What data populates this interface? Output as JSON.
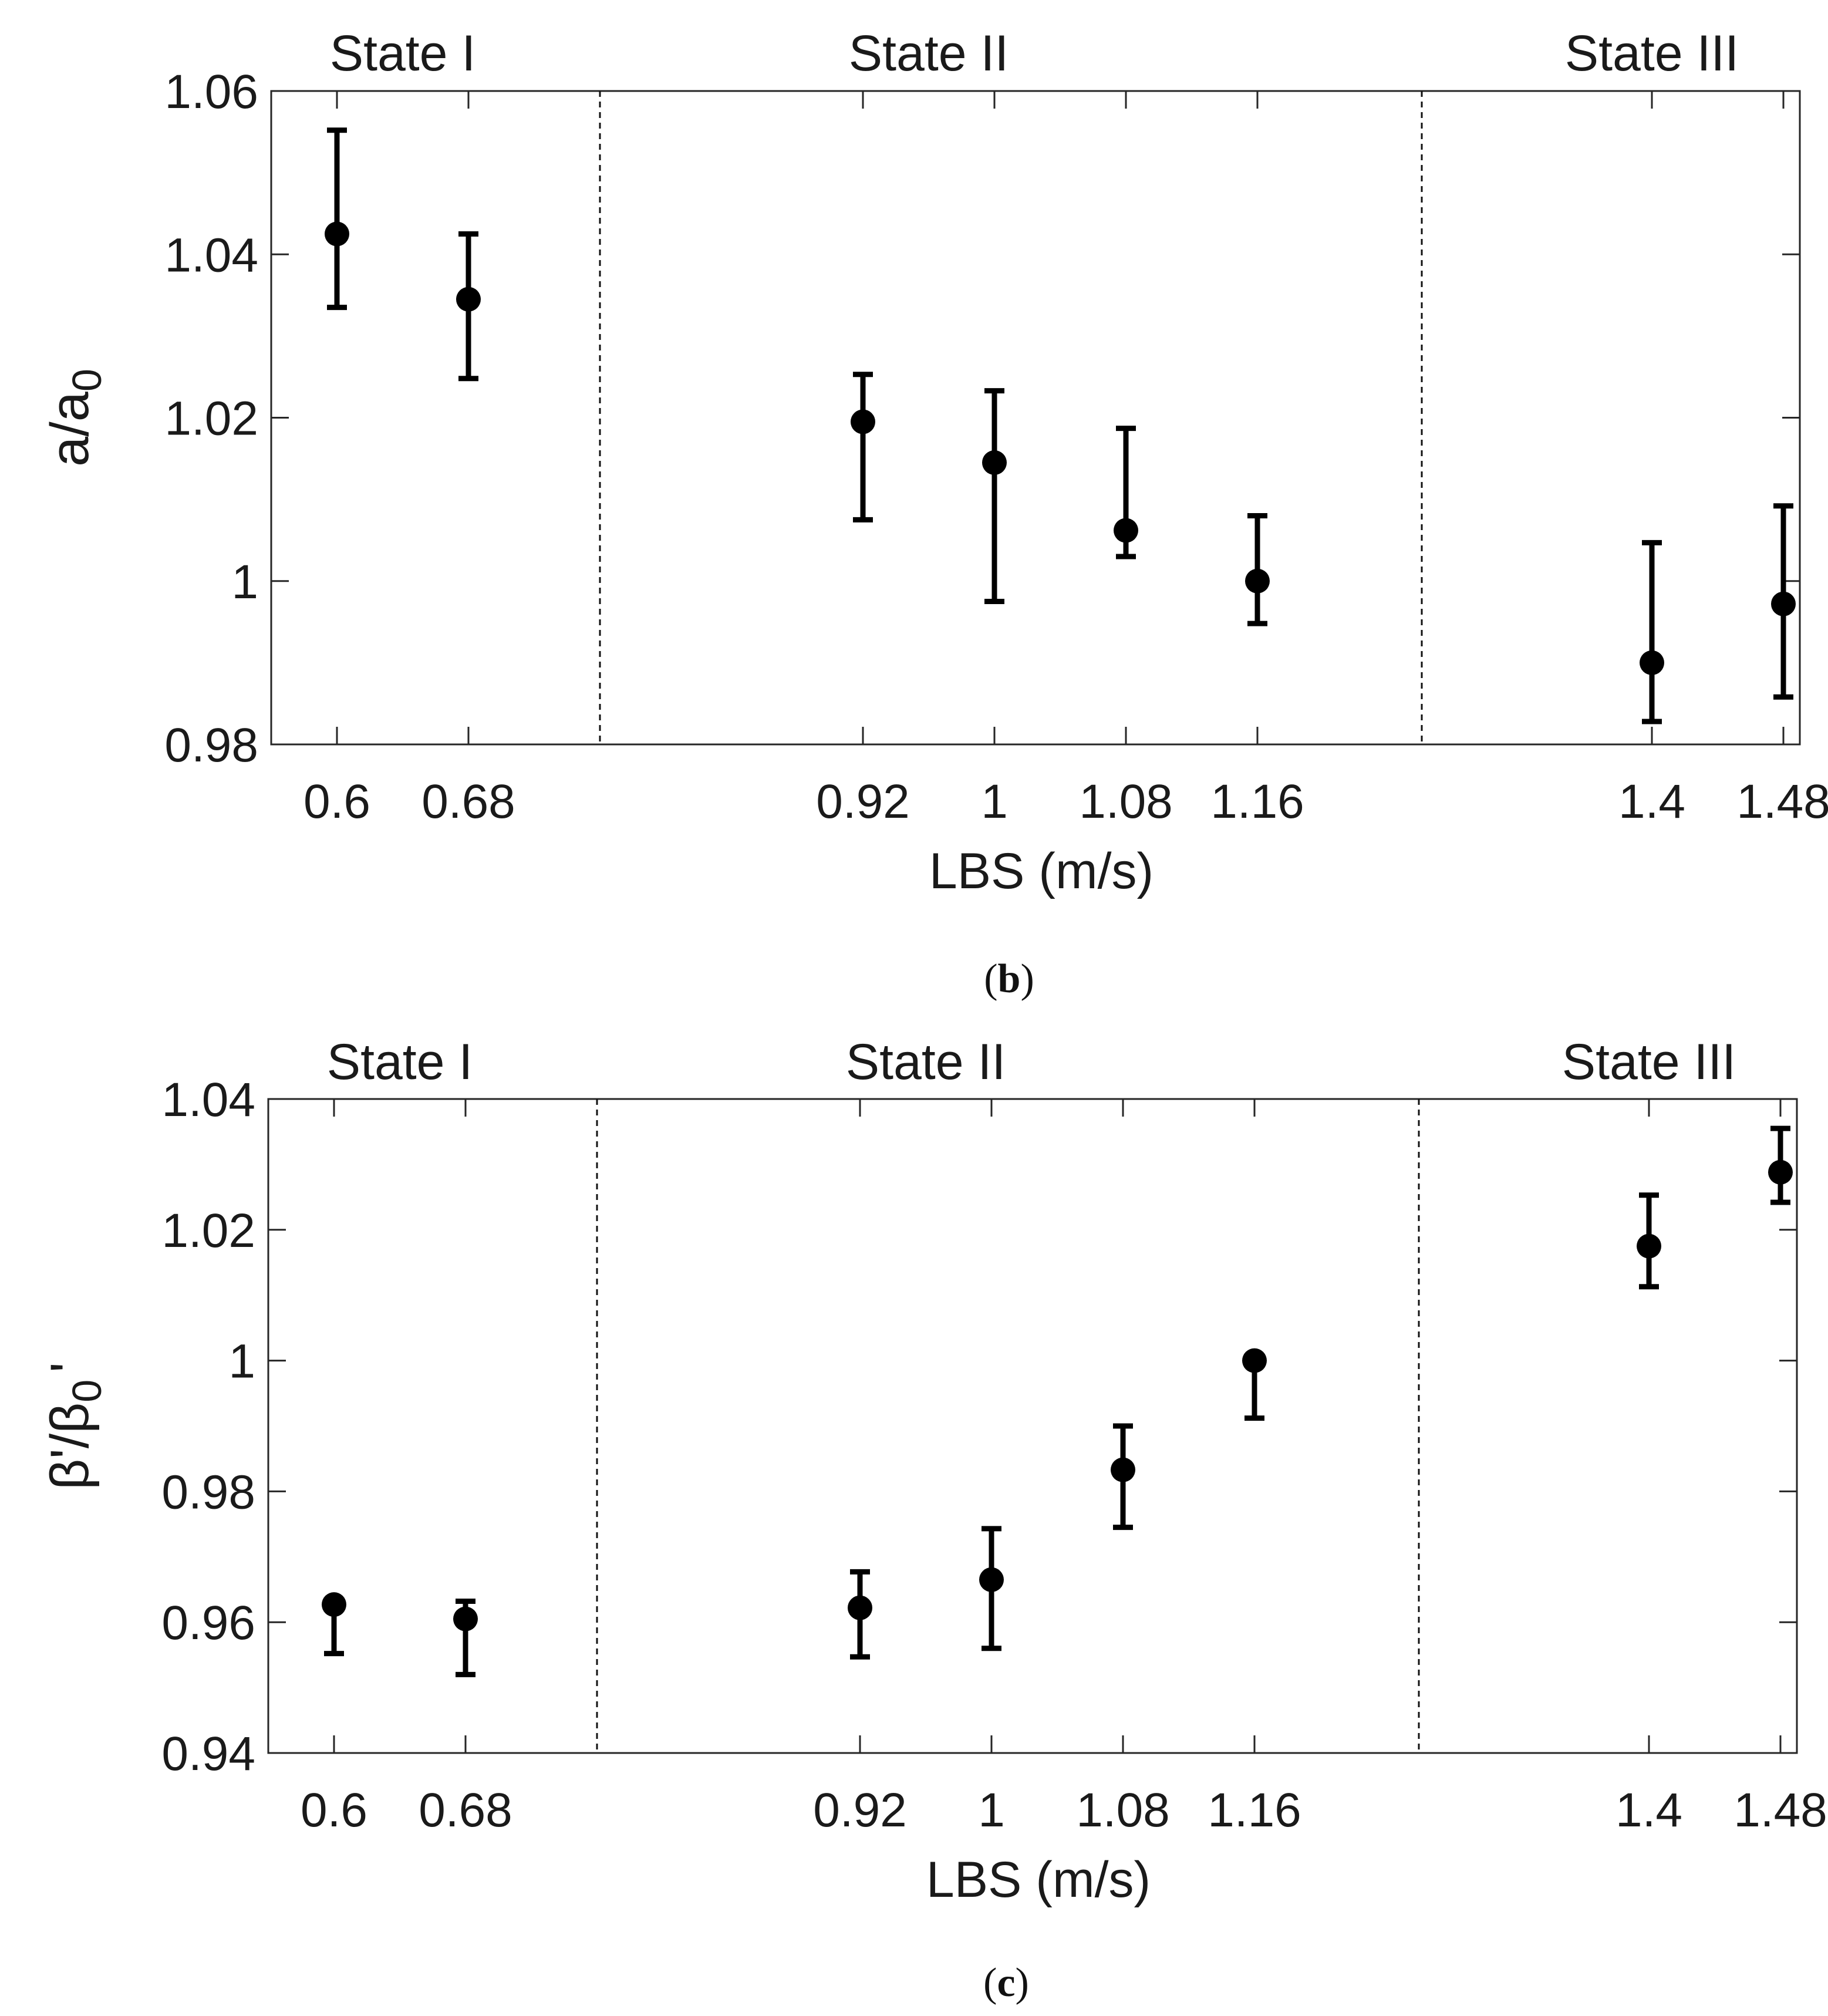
{
  "chart_data": [
    {
      "type": "scatter",
      "title": "",
      "xlabel": "LBS (m/s)",
      "ylabel": "a/a0",
      "ylabel_main": "a/a",
      "ylabel_sub": "0",
      "ylabel_suffix": "",
      "ylim": [
        0.98,
        1.06
      ],
      "yticks": [
        0.98,
        1,
        1.02,
        1.04,
        1.06
      ],
      "ytick_labels": [
        "0.98",
        "1",
        "1.02",
        "1.04",
        "1.06"
      ],
      "xlim": [
        0.56,
        1.49
      ],
      "xticks": [
        0.6,
        0.68,
        0.92,
        1,
        1.08,
        1.16,
        1.4,
        1.48
      ],
      "xtick_labels": [
        "0.6",
        "0.68",
        "0.92",
        "1",
        "1.08",
        "1.16",
        "1.4",
        "1.48"
      ],
      "state_dividers": [
        0.76,
        1.26
      ],
      "state_labels": [
        {
          "label": "State I",
          "x": 0.64
        },
        {
          "label": "State II",
          "x": 0.96
        },
        {
          "label": "State III",
          "x": 1.4
        }
      ],
      "series": [
        {
          "name": "a/a0",
          "color": "#000000",
          "x": [
            0.6,
            0.68,
            0.92,
            1,
            1.08,
            1.16,
            1.4,
            1.48
          ],
          "y": [
            1.0425,
            1.0345,
            1.0195,
            1.0145,
            1.0062,
            1.0,
            0.99,
            0.9972
          ],
          "err_low": [
            1.0335,
            1.0248,
            1.0075,
            0.9975,
            1.003,
            0.9948,
            0.9828,
            0.9858
          ],
          "err_high": [
            1.0552,
            1.0425,
            1.0253,
            1.0233,
            1.0187,
            1.008,
            1.0047,
            1.0092
          ]
        }
      ],
      "caption": "(b)",
      "caption_letter": "b"
    },
    {
      "type": "scatter",
      "title": "",
      "xlabel": "LBS (m/s)",
      "ylabel": "β'/β0'",
      "ylabel_main": "β'/β",
      "ylabel_sub": "0",
      "ylabel_suffix": "'",
      "ylim": [
        0.94,
        1.04
      ],
      "yticks": [
        0.94,
        0.96,
        0.98,
        1,
        1.02,
        1.04
      ],
      "ytick_labels": [
        "0.94",
        "0.96",
        "0.98",
        "1",
        "1.02",
        "1.04"
      ],
      "xlim": [
        0.56,
        1.49
      ],
      "xticks": [
        0.6,
        0.68,
        0.92,
        1,
        1.08,
        1.16,
        1.4,
        1.48
      ],
      "xtick_labels": [
        "0.6",
        "0.68",
        "0.92",
        "1",
        "1.08",
        "1.16",
        "1.4",
        "1.48"
      ],
      "state_dividers": [
        0.76,
        1.26
      ],
      "state_labels": [
        {
          "label": "State I",
          "x": 0.64
        },
        {
          "label": "State II",
          "x": 0.96
        },
        {
          "label": "State III",
          "x": 1.4
        }
      ],
      "series": [
        {
          "name": "β'/β0'",
          "color": "#000000",
          "x": [
            0.6,
            0.68,
            0.92,
            1,
            1.08,
            1.16,
            1.4,
            1.48
          ],
          "y": [
            0.9627,
            0.9605,
            0.9622,
            0.9665,
            0.9833,
            1.0,
            1.0175,
            1.0288
          ],
          "err_low": [
            0.9552,
            0.952,
            0.9547,
            0.956,
            0.9745,
            0.9912,
            1.0113,
            1.0242
          ],
          "err_high": [
            0.9632,
            0.9632,
            0.9677,
            0.9743,
            0.99,
            1.0003,
            1.0253,
            1.0355
          ]
        }
      ],
      "caption": "(c)",
      "caption_letter": "c"
    }
  ]
}
